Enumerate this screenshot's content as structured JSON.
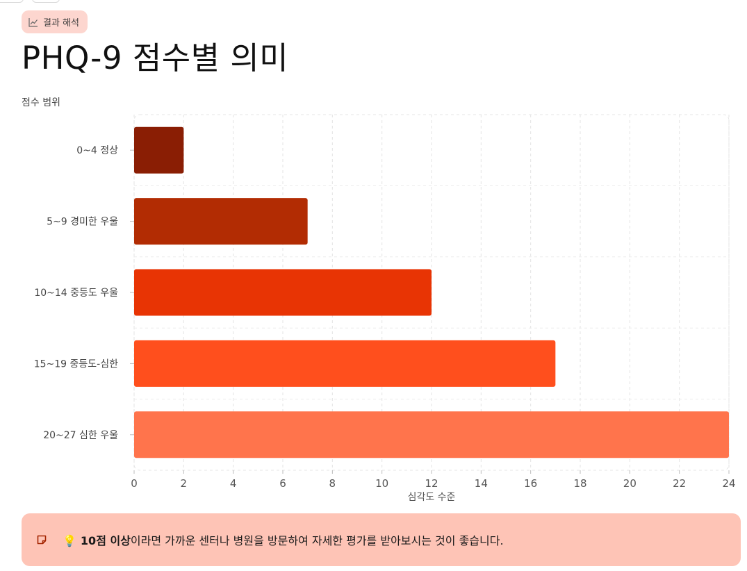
{
  "badge": {
    "icon": "trend-line-icon",
    "label": "결과 해석"
  },
  "page": {
    "title": "PHQ-9 점수별 의미"
  },
  "callout": {
    "icon": "note-icon",
    "bulb": "💡",
    "bold_text": "10점 이상",
    "rest_text": "이라면 가까운 센터나 병원을 방문하여 자세한 평가를 받아보시는 것이 좋습니다."
  },
  "chart_data": {
    "type": "bar",
    "orientation": "horizontal",
    "ylabel": "점수 범위",
    "xlabel": "심각도 수준",
    "categories": [
      "0~4 정상",
      "5~9 경미한 우울",
      "10~14 중등도 우울",
      "15~19 중등도-심한",
      "20~27 심한 우울"
    ],
    "values": [
      2,
      7,
      12,
      17,
      24
    ],
    "colors": [
      "#8a1e04",
      "#b22c03",
      "#e83404",
      "#ff4f1d",
      "#ff744c"
    ],
    "xlim": [
      0,
      24
    ],
    "xticks": [
      0,
      2,
      4,
      6,
      8,
      10,
      12,
      14,
      16,
      18,
      20,
      22,
      24
    ],
    "grid": true,
    "legend": "none"
  }
}
